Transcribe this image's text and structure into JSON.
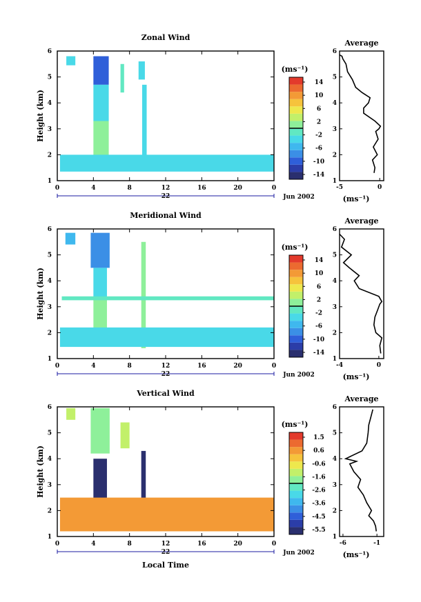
{
  "colors": {
    "wind_scale": [
      "#2a2f6e",
      "#2b3da8",
      "#2f5fd9",
      "#3b8fe6",
      "#3fb8ee",
      "#49d9e8",
      "#61e8c2",
      "#8ef09a",
      "#c2f06a",
      "#eee84d",
      "#f6c33c",
      "#f39a36",
      "#ec6a30",
      "#e33a2c"
    ]
  },
  "date_label": "Jun 2002",
  "day_label": "22",
  "xlabel": "Local Time",
  "xticks": [
    "0",
    "4",
    "8",
    "12",
    "16",
    "20",
    "0"
  ],
  "average_title": "Average",
  "average_unit": "(ms⁻¹)",
  "colorbar_unit": "(ms⁻¹)",
  "chart_data": [
    {
      "type": "heatmap",
      "title": "Zonal Wind",
      "ylabel": "Height (km)",
      "xlim": [
        0,
        24
      ],
      "ylim": [
        1,
        6
      ],
      "yticks": [
        "1",
        "2",
        "3",
        "4",
        "5",
        "6"
      ],
      "colorbar": {
        "ticks": [
          "14",
          "10",
          "6",
          "2",
          "-2",
          "-6",
          "-10",
          "-14"
        ],
        "range": [
          -14,
          14
        ]
      },
      "blocks": [
        {
          "x0": 1.0,
          "x1": 2.0,
          "y0": 5.45,
          "y1": 5.8,
          "value": -3
        },
        {
          "x0": 4.0,
          "x1": 5.7,
          "y0": 4.7,
          "y1": 5.8,
          "value": -9
        },
        {
          "x0": 4.0,
          "x1": 5.7,
          "y0": 3.3,
          "y1": 4.7,
          "value": -3
        },
        {
          "x0": 4.0,
          "x1": 5.7,
          "y0": 1.4,
          "y1": 3.3,
          "value": 1
        },
        {
          "x0": 7.0,
          "x1": 7.4,
          "y0": 4.4,
          "y1": 5.5,
          "value": -2
        },
        {
          "x0": 9.0,
          "x1": 9.7,
          "y0": 4.9,
          "y1": 5.6,
          "value": -3
        },
        {
          "x0": 9.4,
          "x1": 9.9,
          "y0": 1.6,
          "y1": 4.7,
          "value": -3
        },
        {
          "x0": 0.3,
          "x1": 24.0,
          "y0": 1.35,
          "y1": 2.0,
          "value": -4
        }
      ],
      "average": {
        "xlim": [
          -5,
          0.5
        ],
        "xticks": [
          "-5",
          "0"
        ],
        "ylim": [
          1,
          6
        ],
        "yticks": [
          "1",
          "2",
          "3",
          "4",
          "5",
          "6"
        ],
        "x": [
          -0.7,
          -0.6,
          -0.9,
          -0.3,
          -0.8,
          -0.2,
          -0.5,
          -0.1,
          0.1,
          -0.6,
          -2.0,
          -2.0,
          -1.4,
          -1.2,
          -2.2,
          -3.0,
          -3.4,
          -4.0,
          -4.2,
          -4.6,
          -4.7,
          -5.0
        ],
        "y": [
          1.3,
          1.5,
          1.8,
          2.0,
          2.3,
          2.6,
          2.9,
          3.0,
          3.1,
          3.3,
          3.6,
          3.8,
          4.0,
          4.2,
          4.4,
          4.6,
          4.9,
          5.2,
          5.5,
          5.7,
          5.8,
          5.85
        ]
      }
    },
    {
      "type": "heatmap",
      "title": "Meridional Wind",
      "ylabel": "Height (km)",
      "xlim": [
        0,
        24
      ],
      "ylim": [
        1,
        6
      ],
      "yticks": [
        "1",
        "2",
        "3",
        "4",
        "5",
        "6"
      ],
      "colorbar": {
        "ticks": [
          "14",
          "10",
          "6",
          "2",
          "-2",
          "-6",
          "-10",
          "-14"
        ],
        "range": [
          -14,
          14
        ]
      },
      "blocks": [
        {
          "x0": 0.9,
          "x1": 2.0,
          "y0": 5.4,
          "y1": 5.85,
          "value": -5
        },
        {
          "x0": 3.7,
          "x1": 5.8,
          "y0": 4.5,
          "y1": 5.85,
          "value": -8
        },
        {
          "x0": 4.0,
          "x1": 5.5,
          "y0": 3.3,
          "y1": 4.5,
          "value": -3
        },
        {
          "x0": 4.0,
          "x1": 5.5,
          "y0": 1.5,
          "y1": 3.3,
          "value": 0
        },
        {
          "x0": 9.3,
          "x1": 9.8,
          "y0": 1.4,
          "y1": 5.5,
          "value": 1
        },
        {
          "x0": 0.3,
          "x1": 24.0,
          "y0": 1.45,
          "y1": 2.2,
          "value": -3
        },
        {
          "x0": 0.5,
          "x1": 24.0,
          "y0": 3.25,
          "y1": 3.4,
          "value": -1
        }
      ],
      "average": {
        "xlim": [
          -4,
          0.5
        ],
        "xticks": [
          "-4",
          "0"
        ],
        "ylim": [
          1,
          6
        ],
        "yticks": [
          "1",
          "2",
          "3",
          "4",
          "5",
          "6"
        ],
        "x": [
          0.2,
          0.1,
          0.3,
          -0.3,
          -0.5,
          -0.4,
          -0.1,
          0.1,
          0.3,
          0.0,
          -2.0,
          -2.5,
          -2.0,
          -3.0,
          -3.6,
          -2.8,
          -3.8,
          -3.5,
          -4.0
        ],
        "y": [
          1.2,
          1.5,
          1.8,
          2.0,
          2.3,
          2.6,
          2.9,
          3.1,
          3.2,
          3.4,
          3.7,
          4.0,
          4.2,
          4.5,
          4.7,
          5.0,
          5.3,
          5.6,
          5.8
        ]
      }
    },
    {
      "type": "heatmap",
      "title": "Vertical Wind",
      "ylabel": "Height (km)",
      "xlim": [
        0,
        24
      ],
      "ylim": [
        1,
        6
      ],
      "yticks": [
        "1",
        "2",
        "3",
        "4",
        "5",
        "6"
      ],
      "colorbar": {
        "ticks": [
          "1.5",
          "0.6",
          "-0.6",
          "-1.6",
          "-2.6",
          "-3.6",
          "-4.5",
          "-5.5"
        ],
        "range": [
          -6,
          2
        ]
      },
      "blocks": [
        {
          "x0": 1.0,
          "x1": 2.0,
          "y0": 5.5,
          "y1": 5.95,
          "value": -1.2
        },
        {
          "x0": 3.7,
          "x1": 5.8,
          "y0": 4.2,
          "y1": 5.95,
          "value": -2.0
        },
        {
          "x0": 4.0,
          "x1": 5.5,
          "y0": 1.2,
          "y1": 4.0,
          "value": -6.0
        },
        {
          "x0": 9.3,
          "x1": 9.8,
          "y0": 1.5,
          "y1": 4.3,
          "value": -5.5
        },
        {
          "x0": 0.3,
          "x1": 24.0,
          "y0": 1.2,
          "y1": 2.5,
          "value": 0.4
        },
        {
          "x0": 7.0,
          "x1": 8.0,
          "y0": 4.4,
          "y1": 5.4,
          "value": -1.0
        }
      ],
      "average": {
        "xlim": [
          -6.5,
          0
        ],
        "xticks": [
          "-6",
          "-1"
        ],
        "ylim": [
          1,
          6
        ],
        "yticks": [
          "1",
          "2",
          "3",
          "4",
          "5",
          "6"
        ],
        "x": [
          -1.1,
          -1.2,
          -1.5,
          -2.2,
          -1.8,
          -2.5,
          -3.0,
          -3.8,
          -3.4,
          -4.4,
          -5.0,
          -4.0,
          -5.6,
          -3.2,
          -2.5,
          -2.3,
          -2.2,
          -1.9,
          -1.6
        ],
        "y": [
          1.2,
          1.4,
          1.6,
          1.8,
          2.0,
          2.3,
          2.6,
          2.9,
          3.2,
          3.5,
          3.8,
          3.9,
          4.0,
          4.3,
          4.6,
          5.0,
          5.3,
          5.6,
          5.9
        ]
      }
    }
  ]
}
